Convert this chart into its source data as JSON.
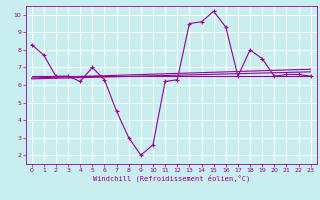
{
  "title": "",
  "xlabel": "Windchill (Refroidissement éolien,°C)",
  "bg_color": "#c8eef0",
  "grid_color": "#ffffff",
  "line_color": "#990099",
  "xlim": [
    -0.5,
    23.5
  ],
  "ylim": [
    1.5,
    10.5
  ],
  "xticks": [
    0,
    1,
    2,
    3,
    4,
    5,
    6,
    7,
    8,
    9,
    10,
    11,
    12,
    13,
    14,
    15,
    16,
    17,
    18,
    19,
    20,
    21,
    22,
    23
  ],
  "yticks": [
    2,
    3,
    4,
    5,
    6,
    7,
    8,
    9,
    10
  ],
  "curve1_x": [
    0,
    1,
    2,
    3,
    4,
    5,
    6,
    7,
    8,
    9,
    10,
    11,
    12,
    13,
    14,
    15,
    16,
    17,
    18,
    19,
    20,
    21,
    22,
    23
  ],
  "curve1_y": [
    8.3,
    7.7,
    6.5,
    6.5,
    6.2,
    7.0,
    6.3,
    4.5,
    3.0,
    2.0,
    2.6,
    6.2,
    6.3,
    9.5,
    9.6,
    10.2,
    9.3,
    6.5,
    8.0,
    7.5,
    6.5,
    6.6,
    6.6,
    6.5
  ],
  "curve2_x": [
    0,
    23
  ],
  "curve2_y": [
    6.5,
    6.5
  ],
  "curve3_x": [
    0,
    23
  ],
  "curve3_y": [
    6.4,
    6.9
  ],
  "curve4_x": [
    0,
    23
  ],
  "curve4_y": [
    6.35,
    6.75
  ]
}
